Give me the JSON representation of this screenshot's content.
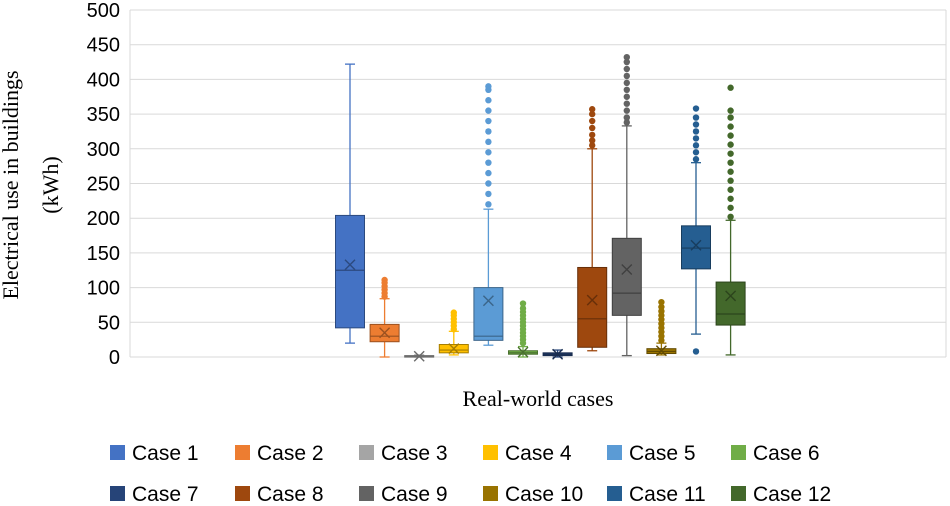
{
  "chart_data": {
    "type": "boxplot",
    "title": "",
    "xlabel": "Real-world cases",
    "ylabel_line1": "Electrical use in buildings",
    "ylabel_line2": "(kWh)",
    "ylim": [
      0,
      500
    ],
    "yticks": [
      0,
      50,
      100,
      150,
      200,
      250,
      300,
      350,
      400,
      450,
      500
    ],
    "grid": true,
    "legend_position": "bottom",
    "series": [
      {
        "name": "Case 1",
        "color": "#4472C4",
        "min": 20,
        "q1": 42,
        "median": 125,
        "q3": 204,
        "max": 422,
        "mean": 133,
        "outliers": []
      },
      {
        "name": "Case 2",
        "color": "#ED7D31",
        "min": 0,
        "q1": 22,
        "median": 30,
        "q3": 47,
        "max": 84,
        "mean": 35,
        "outliers": [
          87,
          92,
          97,
          102,
          107,
          111
        ]
      },
      {
        "name": "Case 3",
        "color": "#A5A5A5",
        "min": 0,
        "q1": 0,
        "median": 1,
        "q3": 2,
        "max": 3,
        "mean": 1,
        "outliers": []
      },
      {
        "name": "Case 4",
        "color": "#FFC000",
        "min": 3,
        "q1": 6,
        "median": 10,
        "q3": 18,
        "max": 37,
        "mean": 12,
        "outliers": [
          40,
          45,
          50,
          55,
          60,
          64
        ]
      },
      {
        "name": "Case 5",
        "color": "#5B9BD5",
        "min": 17,
        "q1": 24,
        "median": 30,
        "q3": 100,
        "max": 213,
        "mean": 81,
        "outliers": [
          220,
          235,
          250,
          265,
          280,
          295,
          310,
          325,
          340,
          355,
          370,
          385,
          390
        ]
      },
      {
        "name": "Case 6",
        "color": "#70AD47",
        "min": 0,
        "q1": 4,
        "median": 6,
        "q3": 9,
        "max": 15,
        "mean": 7,
        "outliers": [
          20,
          25,
          30,
          35,
          40,
          45,
          50,
          55,
          60,
          65,
          70,
          77
        ]
      },
      {
        "name": "Case 7",
        "color": "#264478",
        "min": 0,
        "q1": 2,
        "median": 4,
        "q3": 6,
        "max": 10,
        "mean": 4,
        "outliers": []
      },
      {
        "name": "Case 8",
        "color": "#9E480E",
        "min": 9,
        "q1": 14,
        "median": 55,
        "q3": 129,
        "max": 300,
        "mean": 82,
        "outliers": [
          305,
          312,
          320,
          330,
          340,
          350,
          357
        ]
      },
      {
        "name": "Case 9",
        "color": "#636363",
        "min": 2,
        "q1": 60,
        "median": 92,
        "q3": 171,
        "max": 333,
        "mean": 126,
        "outliers": [
          338,
          345,
          355,
          365,
          375,
          385,
          395,
          405,
          415,
          425,
          432
        ]
      },
      {
        "name": "Case 10",
        "color": "#997300",
        "min": 3,
        "q1": 5,
        "median": 8,
        "q3": 12,
        "max": 20,
        "mean": 9,
        "outliers": [
          24,
          30,
          36,
          42,
          48,
          54,
          60,
          66,
          72,
          79
        ]
      },
      {
        "name": "Case 11",
        "color": "#255E91",
        "min": 33,
        "q1": 127,
        "median": 157,
        "q3": 189,
        "max": 280,
        "mean": 161,
        "outliers": [
          8,
          285,
          295,
          305,
          315,
          325,
          335,
          345,
          358
        ]
      },
      {
        "name": "Case 12",
        "color": "#43682B",
        "min": 3,
        "q1": 46,
        "median": 62,
        "q3": 108,
        "max": 197,
        "mean": 88,
        "outliers": [
          202,
          215,
          228,
          241,
          254,
          267,
          280,
          293,
          306,
          319,
          332,
          345,
          355,
          388
        ]
      }
    ]
  }
}
